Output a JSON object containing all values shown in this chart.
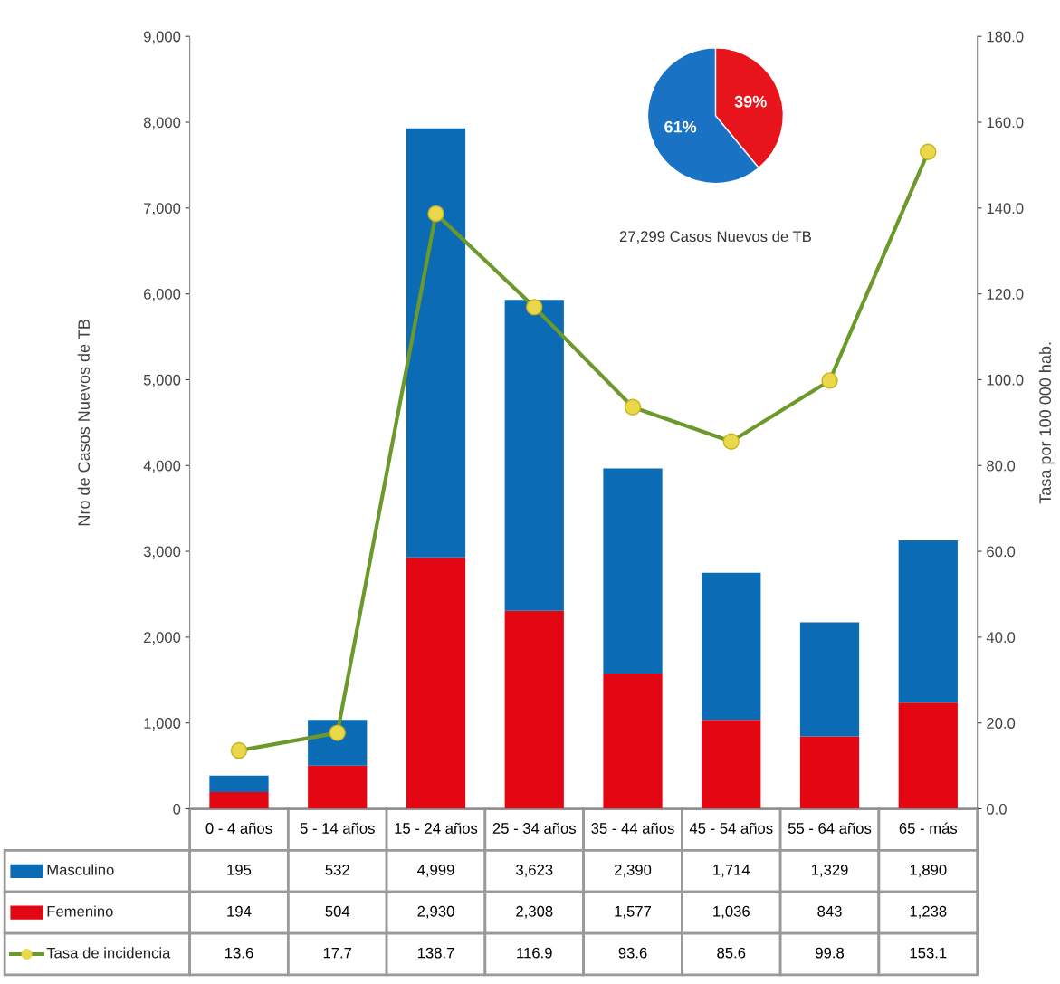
{
  "chart_data": [
    {
      "type": "bar",
      "stacked": true,
      "ylabel": "Nro de Casos Nuevos de TB",
      "y2label": "Tasa por 100 000 hab.",
      "categories": [
        "0 - 4 años",
        "5 - 14 años",
        "15 - 24 años",
        "25 - 34 años",
        "35 - 44 años",
        "45 - 54 años",
        "55 - 64 años",
        "65 - más"
      ],
      "series": [
        {
          "name": "Femenino",
          "color": "#e30613",
          "values": [
            194,
            504,
            2930,
            2308,
            1577,
            1036,
            843,
            1238
          ],
          "value_labels": [
            "194",
            "504",
            "2,930",
            "2,308",
            "1,577",
            "1,036",
            "843",
            "1,238"
          ]
        },
        {
          "name": "Masculino",
          "color": "#0b6bb5",
          "values": [
            195,
            532,
            4999,
            3623,
            2390,
            1714,
            1329,
            1890
          ],
          "value_labels": [
            "195",
            "532",
            "4,999",
            "3,623",
            "2,390",
            "1,714",
            "1,329",
            "1,890"
          ]
        },
        {
          "name": "Tasa de incidencia",
          "type": "line",
          "axis": "y2",
          "color": "#6b9a2a",
          "colors": [
            "#e8d84a",
            "#e8d84a",
            "#e8d84a",
            "#e8d84a",
            "#e8d84a",
            "#e8d84a",
            "#e8d84a",
            "#e8d84a"
          ],
          "marker": "circle",
          "values": [
            13.6,
            17.7,
            138.7,
            116.9,
            93.6,
            85.6,
            99.8,
            153.1
          ],
          "value_labels": [
            "13.6",
            "17.7",
            "138.7",
            "116.9",
            "93.6",
            "85.6",
            "99.8",
            "153.1"
          ]
        }
      ],
      "ylim": [
        0,
        9000
      ],
      "yticks": [
        0,
        {
          "value": 1000,
          "label": "1,000"
        },
        {
          "value": 2000,
          "label": "2,000"
        },
        {
          "value": 3000,
          "label": "3,000"
        },
        {
          "value": 4000,
          "label": "4,000"
        },
        {
          "value": 5000,
          "label": "5,000"
        },
        {
          "value": 6000,
          "label": "6,000"
        },
        {
          "value": 7000,
          "label": "7,000"
        },
        {
          "value": 8000,
          "label": "8,000"
        },
        {
          "value": 9000,
          "label": "9,000"
        }
      ],
      "y2lim": [
        0,
        180
      ],
      "y2ticks": [
        {
          "value": 0,
          "label": "0.0"
        },
        {
          "value": 20,
          "label": "20.0"
        },
        {
          "value": 40,
          "label": "40.0"
        },
        {
          "value": 60,
          "label": "60.0"
        },
        {
          "value": 80,
          "label": "80.0"
        },
        {
          "value": 100,
          "label": "100.0"
        },
        {
          "value": 120,
          "label": "120.0"
        },
        {
          "value": 140,
          "label": "140.0"
        },
        {
          "value": 160,
          "label": "160.0"
        },
        {
          "value": 180,
          "label": "180.0"
        }
      ],
      "legend": "bottom",
      "grid": false
    },
    {
      "type": "pie",
      "categories": [
        null,
        null
      ],
      "values": [
        39,
        61
      ],
      "colors": [
        "#e8141c",
        "#1a72c4"
      ],
      "value_labels": [
        "39%",
        "61%"
      ],
      "annotations": [
        "27,299 Casos Nuevos de TB"
      ]
    }
  ]
}
